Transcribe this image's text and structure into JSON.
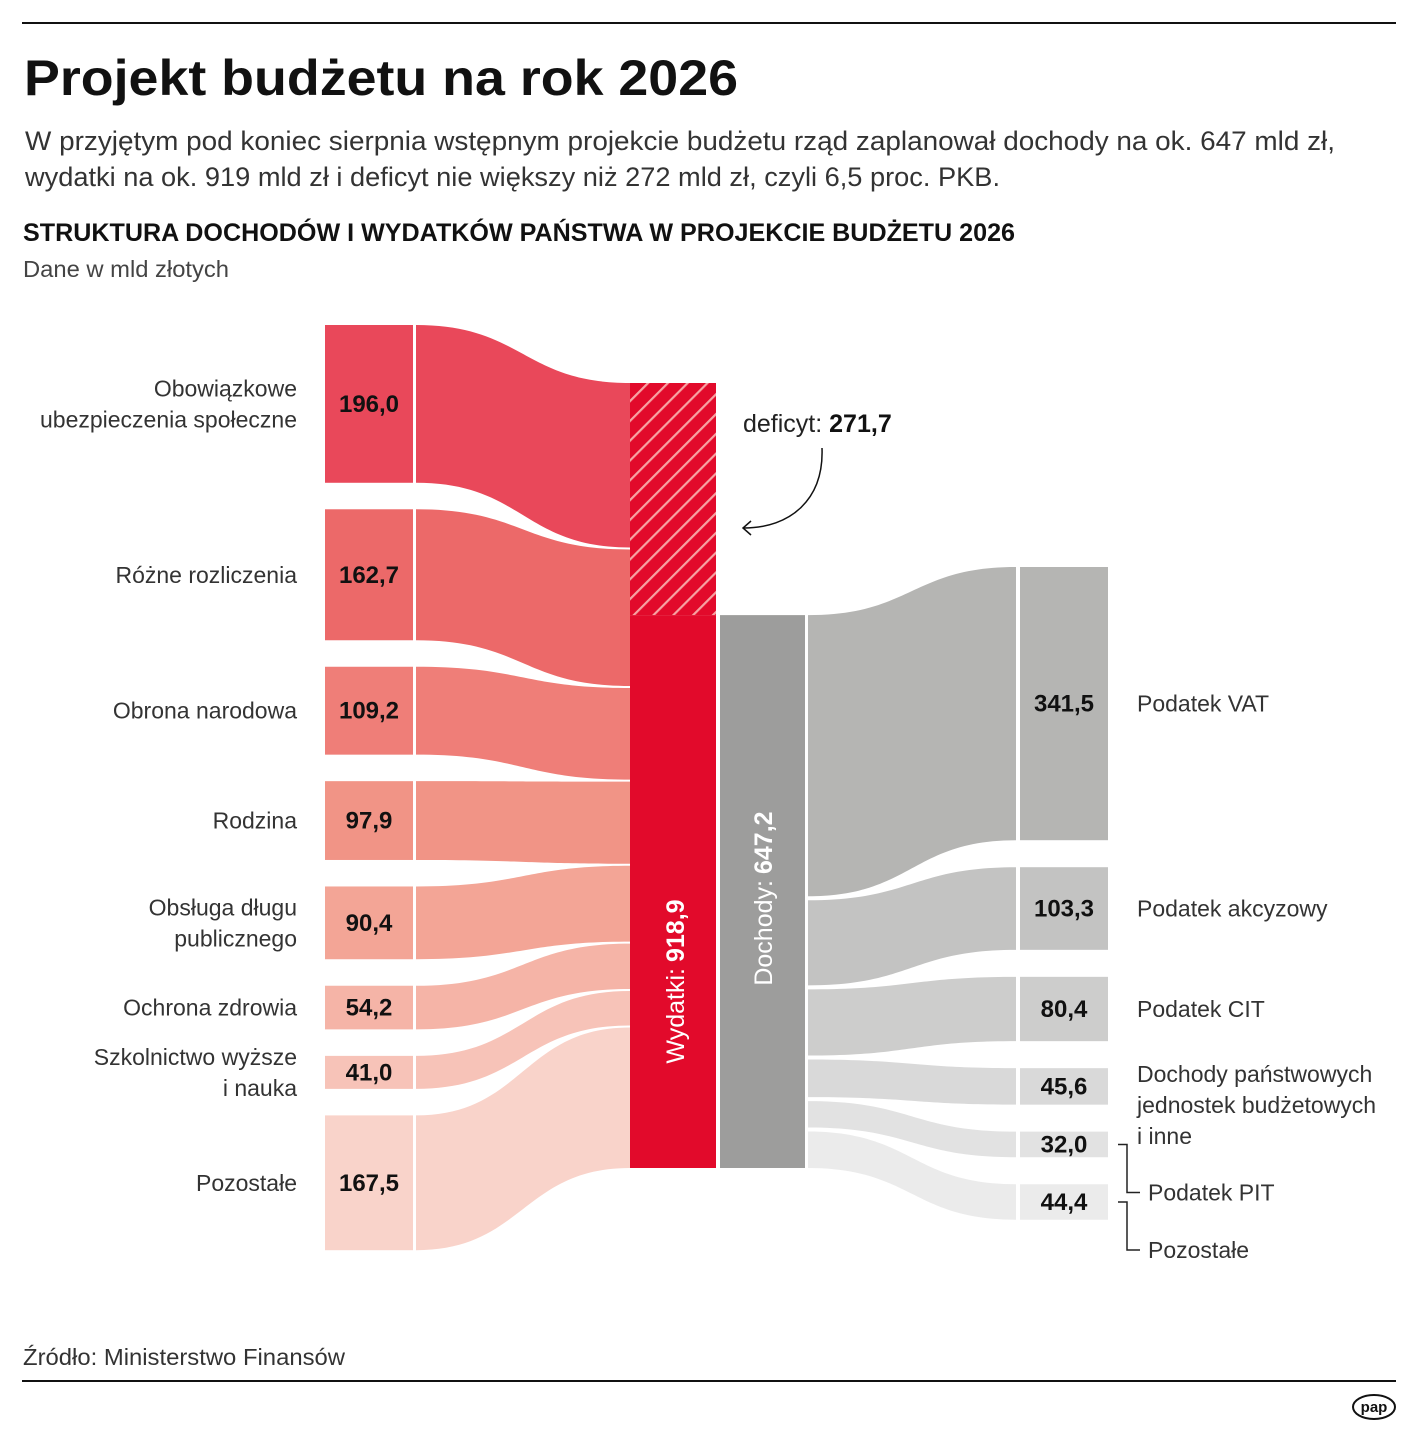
{
  "header": {
    "title": "Projekt budżetu na rok 2026",
    "subtitle_lines": [
      "W przyjętym pod koniec sierpnia wstępnym projekcie budżetu rząd zaplanował dochody na ok. 647 mld zł,",
      "wydatki na ok. 919 mld zł i deficyt nie większy niż 272 mld zł, czyli 6,5 proc. PKB."
    ],
    "chart_heading": "STRUKTURA DOCHODÓW I WYDATKÓW PAŃSTWA W PROJEKCIE BUDŻETU 2026",
    "unit_note": "Dane w mld złotych"
  },
  "footer": {
    "source": "Źródło: Ministerstwo Finansów",
    "logo": "pap"
  },
  "chart_data": {
    "type": "sankey",
    "title": "STRUKTURA DOCHODÓW I WYDATKÓW PAŃSTWA W PROJEKCIE BUDŻETU 2026",
    "unit": "mld zł",
    "expenses_total": {
      "label": "Wydatki:",
      "value": 918.9,
      "value_label": "918,9",
      "color": "#e20a2b"
    },
    "income_total": {
      "label": "Dochody:",
      "value": 647.2,
      "value_label": "647,2",
      "color": "#9d9d9c"
    },
    "deficit": {
      "label": "deficyt:",
      "value": 271.7,
      "value_label": "271,7"
    },
    "expenses": [
      {
        "label_lines": [
          "Obowiązkowe",
          "ubezpieczenia społeczne"
        ],
        "value": 196.0,
        "value_label": "196,0",
        "color": "#e9485a"
      },
      {
        "label_lines": [
          "Różne rozliczenia"
        ],
        "value": 162.7,
        "value_label": "162,7",
        "color": "#ec6969"
      },
      {
        "label_lines": [
          "Obrona narodowa"
        ],
        "value": 109.2,
        "value_label": "109,2",
        "color": "#ef7e78"
      },
      {
        "label_lines": [
          "Rodzina"
        ],
        "value": 97.9,
        "value_label": "97,9",
        "color": "#f19486"
      },
      {
        "label_lines": [
          "Obsługa długu",
          "publicznego"
        ],
        "value": 90.4,
        "value_label": "90,4",
        "color": "#f3a596"
      },
      {
        "label_lines": [
          "Ochrona zdrowia"
        ],
        "value": 54.2,
        "value_label": "54,2",
        "color": "#f5b4a7"
      },
      {
        "label_lines": [
          "Szkolnictwo wyższe",
          "i nauka"
        ],
        "value": 41.0,
        "value_label": "41,0",
        "color": "#f7c3b8"
      },
      {
        "label_lines": [
          "Pozostałe"
        ],
        "value": 167.5,
        "value_label": "167,5",
        "color": "#f9d3ca"
      }
    ],
    "income": [
      {
        "label_lines": [
          "Podatek VAT"
        ],
        "value": 341.5,
        "value_label": "341,5",
        "color": "#b5b5b3"
      },
      {
        "label_lines": [
          "Podatek akcyzowy"
        ],
        "value": 103.3,
        "value_label": "103,3",
        "color": "#c3c3c2"
      },
      {
        "label_lines": [
          "Podatek CIT"
        ],
        "value": 80.4,
        "value_label": "80,4",
        "color": "#cdcdcc"
      },
      {
        "label_lines": [
          "Dochody państwowych",
          "jednostek budżetowych",
          "i inne"
        ],
        "value": 45.6,
        "value_label": "45,6",
        "color": "#d9d9d9"
      },
      {
        "label_lines": [
          "Podatek PIT"
        ],
        "value": 32.0,
        "value_label": "32,0",
        "color": "#e2e2e2"
      },
      {
        "label_lines": [
          "Pozostałe"
        ],
        "value": 44.4,
        "value_label": "44,4",
        "color": "#ebebeb"
      }
    ]
  }
}
